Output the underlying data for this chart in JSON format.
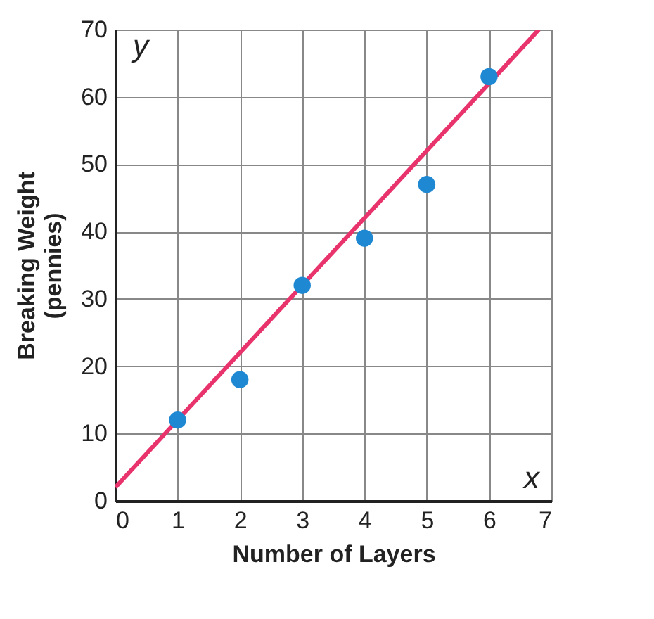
{
  "chart_data": {
    "type": "scatter",
    "xlabel": "Number of Layers",
    "ylabel": "Breaking Weight\n(pennies)",
    "annotations": [
      "y",
      "x"
    ],
    "x": [
      1,
      2,
      3,
      4,
      5,
      6
    ],
    "series": [
      {
        "color": "#1e88d2",
        "marker": "circle",
        "values": [
          12,
          18,
          32,
          39,
          47,
          63
        ]
      },
      {
        "type": "line",
        "color": "#e8336d",
        "marker": "none",
        "x": [
          0,
          6.8
        ],
        "values": [
          2,
          70
        ]
      }
    ],
    "xlim": [
      0,
      7
    ],
    "ylim": [
      0,
      70
    ],
    "xticks": [
      0,
      1,
      2,
      3,
      4,
      5,
      6,
      7
    ],
    "yticks": [
      0,
      10,
      20,
      30,
      40,
      50,
      60,
      70
    ],
    "grid": true,
    "line_style": "solid"
  }
}
